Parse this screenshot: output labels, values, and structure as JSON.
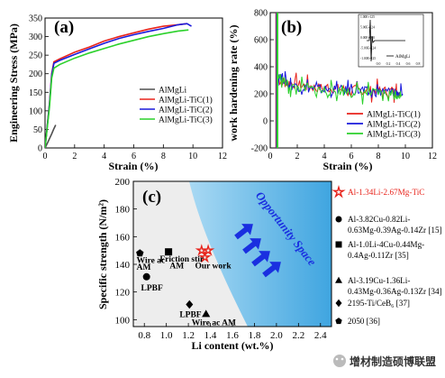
{
  "chart_data": [
    {
      "panel": "(a)",
      "type": "line",
      "xlabel": "Strain (%)",
      "ylabel": "Engineering Stress (MPa)",
      "xlim": [
        0,
        12
      ],
      "ylim": [
        0,
        350
      ],
      "xticks": [
        0,
        2,
        4,
        6,
        8,
        10,
        12
      ],
      "yticks": [
        0,
        50,
        100,
        150,
        200,
        250,
        300,
        350
      ],
      "legend_position": "lower-right",
      "series": [
        {
          "name": "AlMgLi",
          "color": "#505050",
          "x": [
            0,
            0.15,
            0.3,
            0.45,
            0.6,
            0.72
          ],
          "y": [
            0,
            12,
            25,
            38,
            52,
            62
          ]
        },
        {
          "name": "AlMgLi-TiC(1)",
          "color": "#e8231b",
          "x": [
            0,
            0.3,
            0.45,
            0.6,
            1,
            2,
            3,
            4,
            5,
            6,
            7,
            8,
            9,
            9.6
          ],
          "y": [
            0,
            120,
            200,
            232,
            240,
            258,
            272,
            288,
            300,
            310,
            320,
            328,
            332,
            335
          ]
        },
        {
          "name": "AlMgLi-TiC(2)",
          "color": "#1a1adb",
          "x": [
            0,
            0.3,
            0.45,
            0.6,
            1,
            2,
            3,
            4,
            5,
            6,
            7,
            8,
            9,
            9.6,
            9.9
          ],
          "y": [
            0,
            118,
            196,
            228,
            236,
            252,
            267,
            282,
            295,
            305,
            314,
            322,
            332,
            335,
            328
          ]
        },
        {
          "name": "AlMgLi-TiC(3)",
          "color": "#2bd12b",
          "x": [
            0,
            0.3,
            0.45,
            0.6,
            1,
            2,
            3,
            4,
            5,
            6,
            7,
            8,
            9,
            9.7
          ],
          "y": [
            0,
            110,
            188,
            215,
            225,
            242,
            256,
            268,
            280,
            290,
            300,
            308,
            315,
            318
          ]
        }
      ]
    },
    {
      "panel": "(b)",
      "type": "line",
      "xlabel": "Strain (%)",
      "ylabel": "work hardening rate (%)",
      "xlim": [
        0,
        12
      ],
      "ylim": [
        -200,
        800
      ],
      "xticks": [
        0,
        2,
        4,
        6,
        8,
        10,
        12
      ],
      "yticks": [
        -200,
        0,
        200,
        400,
        600,
        800
      ],
      "legend_position": "lower-right",
      "series": [
        {
          "name": "AlMgLi-TiC(1)",
          "color": "#e8231b",
          "x": [
            0.6,
            1.5,
            3,
            4.5,
            6,
            7.5,
            9,
            9.6
          ],
          "y": [
            300,
            280,
            250,
            240,
            230,
            225,
            220,
            210
          ]
        },
        {
          "name": "AlMgLi-TiC(2)",
          "color": "#1a1adb",
          "x": [
            0.6,
            1.5,
            3,
            4.5,
            6,
            7.5,
            9,
            9.8
          ],
          "y": [
            350,
            260,
            240,
            230,
            225,
            215,
            210,
            200
          ]
        },
        {
          "name": "AlMgLi-TiC(3)",
          "color": "#2bd12b",
          "x": [
            0.6,
            1.5,
            3,
            4.5,
            6,
            7.5,
            9,
            9.7
          ],
          "y": [
            330,
            250,
            235,
            220,
            215,
            205,
            200,
            195
          ]
        }
      ],
      "inset": {
        "legend": "AlMgLi",
        "xticks": [
          "0.0",
          "0.2",
          "0.4",
          "0.6",
          "0.8"
        ],
        "yticks": [
          "1.00E+125",
          "5.00E+124",
          "0.00E+000",
          "-5.00E+124",
          "-1.00E+125"
        ]
      }
    },
    {
      "panel": "(c)",
      "type": "scatter",
      "xlabel": "Li content (wt.%)",
      "ylabel": "Specific strength (N/m²)",
      "xlim": [
        0.7,
        2.5
      ],
      "ylim": [
        95,
        200
      ],
      "xticks": [
        "0.8",
        "1.0",
        "1.2",
        "1.4",
        "1.6",
        "1.8",
        "2.0",
        "2.2",
        "2.4"
      ],
      "yticks": [
        "100",
        "120",
        "140",
        "160",
        "180",
        "200"
      ],
      "region_label": "Opportunity Space",
      "legend_position": "right-outside",
      "points": [
        {
          "marker": "star",
          "x": 1.32,
          "y": 150,
          "color": "#e8231b"
        },
        {
          "marker": "star",
          "x": 1.38,
          "y": 150,
          "color": "#e8231b"
        },
        {
          "marker": "star",
          "x": 1.35,
          "y": 145,
          "color": "#e8231b"
        },
        {
          "marker": "pentagon",
          "x": 0.76,
          "y": 148,
          "color": "#000000"
        },
        {
          "marker": "circle",
          "x": 0.82,
          "y": 131,
          "color": "#000000"
        },
        {
          "marker": "square",
          "x": 1.02,
          "y": 149,
          "color": "#000000"
        },
        {
          "marker": "diamond",
          "x": 1.21,
          "y": 111,
          "color": "#000000"
        },
        {
          "marker": "triangle",
          "x": 1.36,
          "y": 104,
          "color": "#000000"
        }
      ],
      "point_labels": [
        {
          "text": "Wire ac",
          "x": 0.73,
          "y": 141
        },
        {
          "text": "AM",
          "x": 0.73,
          "y": 136
        },
        {
          "text": "LPBF",
          "x": 0.77,
          "y": 121
        },
        {
          "text": "Friction stir",
          "x": 0.94,
          "y": 142
        },
        {
          "text": "AM",
          "x": 1.03,
          "y": 137
        },
        {
          "text": "Our work",
          "x": 1.26,
          "y": 137
        },
        {
          "text": "LPBF",
          "x": 1.12,
          "y": 102
        },
        {
          "text": "Wire ac AM",
          "x": 1.23,
          "y": 96
        }
      ],
      "legend": [
        {
          "marker": "star",
          "color": "#e8231b",
          "lines": [
            "Al-1.34Li-2.67Mg-TiC"
          ],
          "text_color": "#e8231b"
        },
        {
          "marker": "circle",
          "color": "#000000",
          "lines": [
            "Al-3.82Cu-0.82Li-",
            "0.63Mg-0.39Ag-0.14Zr [15]"
          ]
        },
        {
          "marker": "square",
          "color": "#000000",
          "lines": [
            "Al-1.0Li-4Cu-0.44Mg-",
            "0.4Ag-0.11Zr [35]"
          ]
        },
        {
          "marker": "triangle",
          "color": "#000000",
          "lines": [
            "Al-3.19Cu-1.36Li-",
            "0.43Mg-0.36Ag-0.13Zr [34]"
          ]
        },
        {
          "marker": "diamond",
          "color": "#000000",
          "lines": [
            "2195-Ti/CeB₆ [37]"
          ]
        },
        {
          "marker": "pentagon",
          "color": "#000000",
          "lines": [
            "2050 [36]"
          ]
        }
      ]
    }
  ],
  "watermark": "增材制造硕博联盟"
}
